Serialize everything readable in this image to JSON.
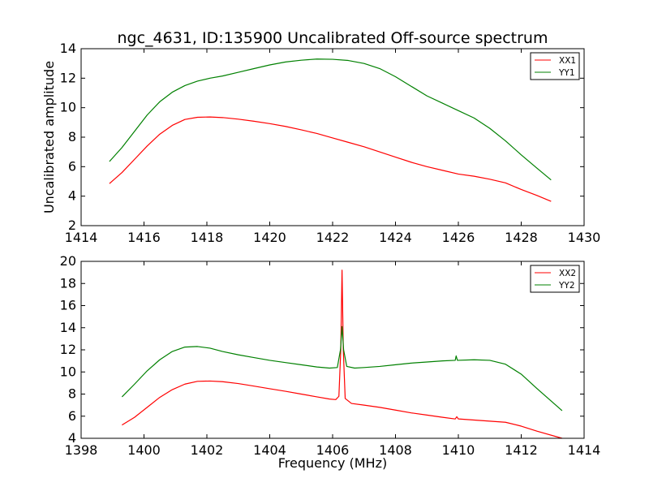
{
  "chart_data": [
    {
      "type": "line",
      "title": "ngc_4631, ID:135900 Uncalibrated Off-source spectrum",
      "xlabel": "",
      "ylabel": "Uncalibrated amplitude",
      "xlim": [
        1414,
        1430
      ],
      "ylim": [
        2,
        14
      ],
      "xticks": [
        "1414",
        "1416",
        "1418",
        "1420",
        "1422",
        "1424",
        "1426",
        "1428",
        "1430"
      ],
      "yticks": [
        "2",
        "4",
        "6",
        "8",
        "10",
        "12",
        "14"
      ],
      "grid": false,
      "legend_position": "top-right",
      "series": [
        {
          "name": "XX1",
          "color": "#ff0000",
          "points": [
            [
              1414.9,
              4.85
            ],
            [
              1415.3,
              5.6
            ],
            [
              1415.7,
              6.5
            ],
            [
              1416.1,
              7.4
            ],
            [
              1416.5,
              8.2
            ],
            [
              1416.9,
              8.8
            ],
            [
              1417.3,
              9.2
            ],
            [
              1417.7,
              9.35
            ],
            [
              1418.1,
              9.37
            ],
            [
              1418.5,
              9.33
            ],
            [
              1419.0,
              9.22
            ],
            [
              1419.5,
              9.08
            ],
            [
              1420.0,
              8.92
            ],
            [
              1420.5,
              8.73
            ],
            [
              1421.0,
              8.5
            ],
            [
              1421.5,
              8.25
            ],
            [
              1422.0,
              7.95
            ],
            [
              1422.5,
              7.65
            ],
            [
              1423.0,
              7.35
            ],
            [
              1423.5,
              7.0
            ],
            [
              1424.0,
              6.65
            ],
            [
              1424.5,
              6.3
            ],
            [
              1425.0,
              6.0
            ],
            [
              1425.5,
              5.75
            ],
            [
              1426.0,
              5.5
            ],
            [
              1426.5,
              5.35
            ],
            [
              1427.0,
              5.15
            ],
            [
              1427.5,
              4.9
            ],
            [
              1428.0,
              4.45
            ],
            [
              1428.5,
              4.05
            ],
            [
              1428.95,
              3.65
            ]
          ]
        },
        {
          "name": "YY1",
          "color": "#008000",
          "points": [
            [
              1414.9,
              6.35
            ],
            [
              1415.3,
              7.3
            ],
            [
              1415.7,
              8.4
            ],
            [
              1416.1,
              9.5
            ],
            [
              1416.5,
              10.4
            ],
            [
              1416.9,
              11.05
            ],
            [
              1417.3,
              11.5
            ],
            [
              1417.7,
              11.8
            ],
            [
              1418.1,
              12.0
            ],
            [
              1418.5,
              12.15
            ],
            [
              1419.0,
              12.4
            ],
            [
              1419.5,
              12.65
            ],
            [
              1420.0,
              12.9
            ],
            [
              1420.5,
              13.1
            ],
            [
              1421.0,
              13.22
            ],
            [
              1421.5,
              13.3
            ],
            [
              1422.0,
              13.28
            ],
            [
              1422.5,
              13.2
            ],
            [
              1423.0,
              13.0
            ],
            [
              1423.5,
              12.65
            ],
            [
              1424.0,
              12.1
            ],
            [
              1424.5,
              11.45
            ],
            [
              1425.0,
              10.8
            ],
            [
              1425.5,
              10.3
            ],
            [
              1426.0,
              9.8
            ],
            [
              1426.5,
              9.3
            ],
            [
              1427.0,
              8.6
            ],
            [
              1427.5,
              7.75
            ],
            [
              1428.0,
              6.8
            ],
            [
              1428.5,
              5.9
            ],
            [
              1428.95,
              5.1
            ]
          ]
        }
      ]
    },
    {
      "type": "line",
      "title": "",
      "xlabel": "Frequency (MHz)",
      "ylabel": "",
      "xlim": [
        1398,
        1414
      ],
      "ylim": [
        4,
        20
      ],
      "xticks": [
        "1398",
        "1400",
        "1402",
        "1404",
        "1406",
        "1408",
        "1410",
        "1412",
        "1414"
      ],
      "yticks": [
        "4",
        "6",
        "8",
        "10",
        "12",
        "14",
        "16",
        "18",
        "20"
      ],
      "grid": false,
      "legend_position": "top-right",
      "series": [
        {
          "name": "XX2",
          "color": "#ff0000",
          "points": [
            [
              1399.3,
              5.2
            ],
            [
              1399.7,
              5.9
            ],
            [
              1400.1,
              6.8
            ],
            [
              1400.5,
              7.7
            ],
            [
              1400.9,
              8.4
            ],
            [
              1401.3,
              8.9
            ],
            [
              1401.7,
              9.15
            ],
            [
              1402.1,
              9.18
            ],
            [
              1402.5,
              9.12
            ],
            [
              1403.0,
              8.95
            ],
            [
              1403.5,
              8.72
            ],
            [
              1404.0,
              8.48
            ],
            [
              1404.5,
              8.25
            ],
            [
              1405.0,
              8.0
            ],
            [
              1405.5,
              7.75
            ],
            [
              1405.9,
              7.55
            ],
            [
              1406.1,
              7.5
            ],
            [
              1406.2,
              7.8
            ],
            [
              1406.26,
              12.0
            ],
            [
              1406.3,
              19.2
            ],
            [
              1406.34,
              12.0
            ],
            [
              1406.4,
              7.6
            ],
            [
              1406.6,
              7.15
            ],
            [
              1407.0,
              7.0
            ],
            [
              1407.5,
              6.8
            ],
            [
              1408.0,
              6.55
            ],
            [
              1408.5,
              6.3
            ],
            [
              1409.0,
              6.1
            ],
            [
              1409.5,
              5.9
            ],
            [
              1409.9,
              5.75
            ],
            [
              1409.95,
              5.95
            ],
            [
              1410.0,
              5.75
            ],
            [
              1410.5,
              5.65
            ],
            [
              1411.0,
              5.55
            ],
            [
              1411.5,
              5.45
            ],
            [
              1412.0,
              5.1
            ],
            [
              1412.5,
              4.65
            ],
            [
              1413.3,
              4.0
            ]
          ]
        },
        {
          "name": "YY2",
          "color": "#008000",
          "points": [
            [
              1399.3,
              7.75
            ],
            [
              1399.7,
              8.9
            ],
            [
              1400.1,
              10.1
            ],
            [
              1400.5,
              11.1
            ],
            [
              1400.9,
              11.85
            ],
            [
              1401.3,
              12.25
            ],
            [
              1401.7,
              12.3
            ],
            [
              1402.1,
              12.15
            ],
            [
              1402.5,
              11.85
            ],
            [
              1403.0,
              11.55
            ],
            [
              1403.5,
              11.3
            ],
            [
              1404.0,
              11.05
            ],
            [
              1404.5,
              10.85
            ],
            [
              1405.0,
              10.65
            ],
            [
              1405.5,
              10.45
            ],
            [
              1405.9,
              10.35
            ],
            [
              1406.15,
              10.4
            ],
            [
              1406.25,
              12.0
            ],
            [
              1406.3,
              14.1
            ],
            [
              1406.35,
              12.0
            ],
            [
              1406.45,
              10.5
            ],
            [
              1406.7,
              10.35
            ],
            [
              1407.0,
              10.4
            ],
            [
              1407.5,
              10.5
            ],
            [
              1408.0,
              10.65
            ],
            [
              1408.5,
              10.8
            ],
            [
              1409.0,
              10.9
            ],
            [
              1409.5,
              11.0
            ],
            [
              1409.9,
              11.05
            ],
            [
              1409.93,
              11.45
            ],
            [
              1409.97,
              11.05
            ],
            [
              1410.5,
              11.1
            ],
            [
              1411.0,
              11.05
            ],
            [
              1411.5,
              10.7
            ],
            [
              1412.0,
              9.8
            ],
            [
              1412.5,
              8.5
            ],
            [
              1413.3,
              6.5
            ]
          ]
        }
      ]
    }
  ]
}
